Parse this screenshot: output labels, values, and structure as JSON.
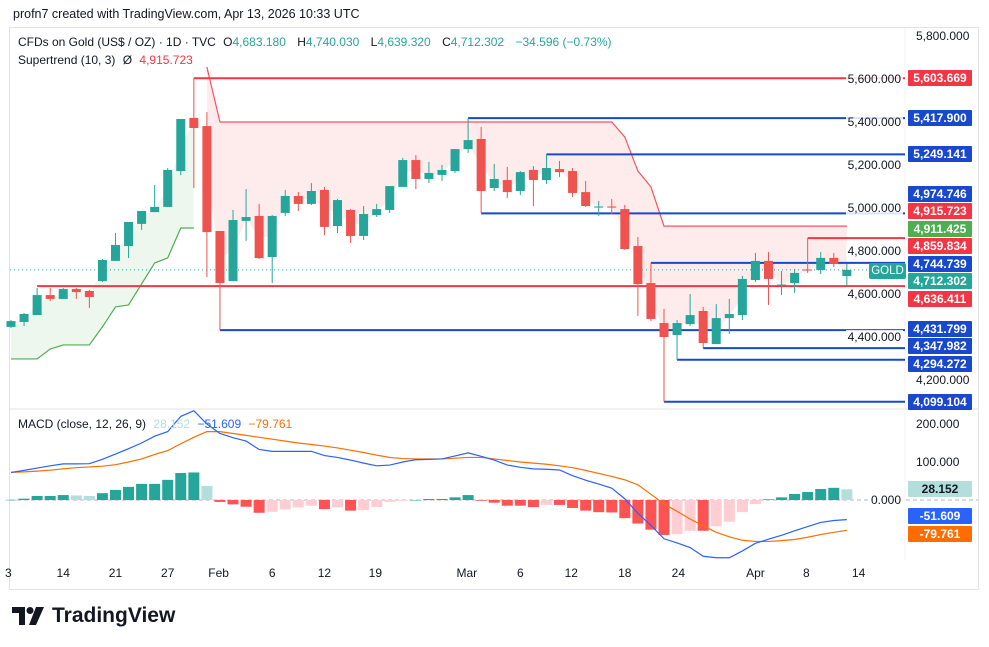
{
  "credit": "profn7 created with TradingView.com, Apr 13, 2026 10:33 UTC",
  "legend": {
    "symbol": "CFDs on Gold (US$ / OZ) · 1D · TVC",
    "open_label": "O",
    "open": "4,683.180",
    "high_label": "H",
    "high": "4,740.030",
    "low_label": "L",
    "low": "4,639.320",
    "close_label": "C",
    "close": "4,712.302",
    "change": "−34.596 (−0.73%)",
    "indicator": "Supertrend (10, 3)",
    "indicator_icon": "eye-off-icon",
    "indicator_value": "4,915.723"
  },
  "macd_legend": {
    "name": "MACD (close, 12, 26, 9)",
    "hist": "28.152",
    "macd": "−51.609",
    "signal": "−79.761"
  },
  "symbol_tag": "GOLD",
  "colors": {
    "up": "#26a69a",
    "down": "#ef5350",
    "level_blue": "#1848cc",
    "level_red": "#f23645",
    "supertrend_up": "#4caf50",
    "supertrend_down": "#f7525f",
    "macd": "#2962ff",
    "signal": "#ff6d00",
    "hist_up": "#26a69a",
    "hist_up_fading": "#b2dfdb",
    "hist_down": "#ff5252",
    "hist_down_fading": "#ffcdd2"
  },
  "price_axis": {
    "ticks": [
      "5,800.000",
      "5,600.000",
      "5,400.000",
      "5,200.000",
      "5,000.000",
      "4,800.000",
      "4,600.000",
      "4,400.000",
      "4,200.000"
    ],
    "range": [
      4099,
      5800
    ]
  },
  "price_labels": [
    {
      "text": "5,603.669",
      "value": 5603.669,
      "color": "#f23645"
    },
    {
      "text": "5,417.900",
      "value": 5417.9,
      "color": "#1848cc"
    },
    {
      "text": "5,249.141",
      "value": 5249.141,
      "color": "#1848cc"
    },
    {
      "text": "4,974.746",
      "value": 4974.746,
      "color": "#1848cc"
    },
    {
      "text": "4,915.723",
      "value": 4915.723,
      "color": "#f23645"
    },
    {
      "text": "4,911.425",
      "value": 4911.425,
      "color": "#4caf50"
    },
    {
      "text": "4,859.834",
      "value": 4859.834,
      "color": "#f23645"
    },
    {
      "text": "4,744.739",
      "value": 4744.739,
      "color": "#1848cc"
    },
    {
      "text": "4,712.302",
      "value": 4712.302,
      "color": "#26a69a"
    },
    {
      "text": "4,636.411",
      "value": 4636.411,
      "color": "#f23645"
    },
    {
      "text": "4,431.799",
      "value": 4431.799,
      "color": "#1848cc"
    },
    {
      "text": "4,347.982",
      "value": 4347.982,
      "color": "#1848cc"
    },
    {
      "text": "4,294.272",
      "value": 4294.272,
      "color": "#1848cc"
    },
    {
      "text": "4,099.104",
      "value": 4099.104,
      "color": "#1848cc"
    }
  ],
  "levels": [
    {
      "price": 5603.669,
      "from_bar": 14,
      "color": "#f23645"
    },
    {
      "price": 5417.9,
      "from_bar": 35,
      "color": "#1848cc"
    },
    {
      "price": 5249.141,
      "from_bar": 41,
      "color": "#1848cc"
    },
    {
      "price": 4974.746,
      "from_bar": 36,
      "color": "#1848cc"
    },
    {
      "price": 4859.834,
      "from_bar": 61,
      "color": "#f23645"
    },
    {
      "price": 4744.739,
      "from_bar": 49,
      "color": "#1848cc"
    },
    {
      "price": 4636.411,
      "from_bar": 2,
      "color": "#f23645"
    },
    {
      "price": 4431.799,
      "from_bar": 16,
      "color": "#1848cc"
    },
    {
      "price": 4347.982,
      "from_bar": 53,
      "color": "#1848cc"
    },
    {
      "price": 4294.272,
      "from_bar": 51,
      "color": "#1848cc"
    },
    {
      "price": 4099.104,
      "from_bar": 50,
      "color": "#1848cc"
    }
  ],
  "last_price": 4712.302,
  "macd_axis": {
    "ticks": [
      "200.000",
      "100.000",
      "0.000"
    ],
    "tick_values": [
      200,
      100,
      0
    ]
  },
  "macd_labels": [
    {
      "text": "28.152",
      "value": 28.152,
      "color": "#b2dfdb",
      "text_color": "#131722"
    },
    {
      "text": "-51.609",
      "value": -51.609,
      "color": "#2962ff",
      "text_color": "#ffffff"
    },
    {
      "text": "-79.761",
      "value": -79.761,
      "color": "#ff6d00",
      "text_color": "#ffffff"
    }
  ],
  "x_ticks": [
    {
      "label": "3",
      "bar": -0.2
    },
    {
      "label": "14",
      "bar": 4.0
    },
    {
      "label": "21",
      "bar": 8.0
    },
    {
      "label": "27",
      "bar": 12.0
    },
    {
      "label": "Feb",
      "bar": 15.9
    },
    {
      "label": "6",
      "bar": 20.0
    },
    {
      "label": "12",
      "bar": 24.0
    },
    {
      "label": "19",
      "bar": 27.9
    },
    {
      "label": "Mar",
      "bar": 34.9
    },
    {
      "label": "6",
      "bar": 39.0
    },
    {
      "label": "12",
      "bar": 42.9
    },
    {
      "label": "18",
      "bar": 47.0
    },
    {
      "label": "24",
      "bar": 51.1
    },
    {
      "label": "Apr",
      "bar": 57.0
    },
    {
      "label": "8",
      "bar": 60.9
    },
    {
      "label": "14",
      "bar": 64.9
    }
  ],
  "chart_data": {
    "type": "candlestick",
    "candles": [
      [
        4447,
        4479,
        4442,
        4474
      ],
      [
        4470,
        4512,
        4451,
        4507
      ],
      [
        4502,
        4628,
        4502,
        4595
      ],
      [
        4595,
        4628,
        4567,
        4577
      ],
      [
        4577,
        4628,
        4577,
        4623
      ],
      [
        4623,
        4628,
        4577,
        4609
      ],
      [
        4614,
        4619,
        4535,
        4586
      ],
      [
        4660,
        4763,
        4656,
        4758
      ],
      [
        4754,
        4884,
        4754,
        4828
      ],
      [
        4823,
        4935,
        4767,
        4935
      ],
      [
        4926,
        4986,
        4898,
        4986
      ],
      [
        4981,
        5107,
        4981,
        5005
      ],
      [
        5005,
        5186,
        5005,
        5177
      ],
      [
        5172,
        5414,
        5153,
        5414
      ],
      [
        5419,
        5603.669,
        5093,
        5372
      ],
      [
        5381,
        5446,
        4679,
        4888
      ],
      [
        4893,
        4893,
        4431.799,
        4651
      ],
      [
        4660,
        4991,
        4660,
        4944
      ],
      [
        4940,
        5088,
        4847,
        4958
      ],
      [
        4963,
        5019,
        4763,
        4767
      ],
      [
        4772,
        4967,
        4651,
        4963
      ],
      [
        4977,
        5084,
        4963,
        5056
      ],
      [
        5056,
        5074,
        4986,
        5019
      ],
      [
        5019,
        5116,
        5014,
        5079
      ],
      [
        5084,
        5098,
        4874,
        4912
      ],
      [
        4916,
        5042,
        4884,
        5037
      ],
      [
        4991,
        4995,
        4837,
        4870
      ],
      [
        4870,
        5009,
        4851,
        4972
      ],
      [
        4967,
        5019,
        4958,
        4995
      ],
      [
        4991,
        5102,
        4977,
        5102
      ],
      [
        5098,
        5233,
        5098,
        5223
      ],
      [
        5223,
        5246,
        5088,
        5135
      ],
      [
        5135,
        5214,
        5116,
        5163
      ],
      [
        5154,
        5200,
        5126,
        5177
      ],
      [
        5172,
        5274,
        5163,
        5274
      ],
      [
        5274,
        5417.9,
        5256,
        5316
      ],
      [
        5321,
        5377,
        4974.746,
        5079
      ],
      [
        5093,
        5205,
        5079,
        5135
      ],
      [
        5130,
        5191,
        5046,
        5074
      ],
      [
        5079,
        5172,
        5060,
        5167
      ],
      [
        5177,
        5195,
        5009,
        5130
      ],
      [
        5130,
        5249.141,
        5112,
        5186
      ],
      [
        5181,
        5219,
        5144,
        5167
      ],
      [
        5172,
        5186,
        5051,
        5070
      ],
      [
        5074,
        5126,
        5005,
        5009
      ],
      [
        5002,
        5033,
        4963,
        5007
      ],
      [
        5007,
        5042,
        4972,
        5002
      ],
      [
        4995,
        5014,
        4805,
        4809
      ],
      [
        4823,
        4865,
        4498,
        4646
      ],
      [
        4651,
        4744.739,
        4474,
        4484
      ],
      [
        4465,
        4530,
        4099.104,
        4400
      ],
      [
        4409,
        4479,
        4294.272,
        4465
      ],
      [
        4460,
        4600,
        4451,
        4502
      ],
      [
        4521,
        4540,
        4347.982,
        4372
      ],
      [
        4367,
        4553,
        4367,
        4488
      ],
      [
        4488,
        4577,
        4414,
        4507
      ],
      [
        4502,
        4684,
        4479,
        4670
      ],
      [
        4665,
        4791,
        4656,
        4754
      ],
      [
        4754,
        4795,
        4549,
        4670
      ],
      [
        4640,
        4707,
        4595,
        4644
      ],
      [
        4651,
        4716,
        4605,
        4698
      ],
      [
        4714,
        4859.834,
        4698,
        4709
      ],
      [
        4712,
        4795,
        4693,
        4768
      ],
      [
        4768,
        4791,
        4726,
        4740
      ],
      [
        4683.18,
        4740.03,
        4639.32,
        4712.302
      ]
    ],
    "candle_fields": [
      "open",
      "high",
      "low",
      "close"
    ],
    "supertrend": [
      4298,
      4298,
      4298,
      4344,
      4363,
      4363,
      4363,
      4447,
      4540,
      4549,
      4647,
      4744,
      4768,
      4907,
      4907,
      5656,
      5400,
      5400,
      5400,
      5400,
      5400,
      5400,
      5400,
      5400,
      5400,
      5400,
      5400,
      5400,
      5400,
      5400,
      5400,
      5400,
      5400,
      5400,
      5400,
      5400,
      5400,
      5400,
      5400,
      5400,
      5400,
      5400,
      5400,
      5400,
      5400,
      5400,
      5400,
      5330,
      5172,
      5098,
      4915.723,
      4915.723,
      4915.723,
      4915.723,
      4915.723,
      4915.723,
      4915.723,
      4915.723,
      4915.723,
      4915.723,
      4915.723,
      4915.723,
      4915.723,
      4915.723,
      4915.723
    ],
    "supertrend_direction": [
      "up",
      15,
      "down",
      50
    ],
    "macd": [
      72.6,
      78,
      84,
      90,
      95,
      95,
      95.6,
      107,
      121,
      135,
      150,
      168,
      180,
      220,
      235,
      200,
      175,
      164,
      155,
      133,
      128,
      128,
      128,
      128,
      117,
      112,
      105,
      97,
      90,
      92,
      100,
      106,
      107,
      108,
      116,
      124,
      115,
      105,
      92,
      86,
      82,
      81,
      79,
      64,
      52,
      42,
      31,
      3,
      -35,
      -67,
      -102,
      -113,
      -125,
      -148,
      -152,
      -152,
      -134,
      -114,
      -103,
      -93,
      -81,
      -70,
      -59,
      -54,
      -51.609
    ],
    "signal": [
      72.6,
      74,
      76,
      78.5,
      82,
      85,
      87,
      89,
      93,
      100,
      108,
      120,
      130,
      148,
      165,
      180,
      180,
      175,
      170,
      165,
      160,
      155,
      150,
      146,
      142,
      137,
      131,
      125,
      118,
      112,
      109,
      108,
      108,
      108,
      110,
      112,
      112,
      108,
      104,
      100,
      97,
      94,
      90,
      85,
      78,
      70,
      62,
      53,
      40,
      15,
      -10,
      -30,
      -50,
      -68,
      -85,
      -97,
      -106,
      -109,
      -109,
      -107,
      -104,
      -98,
      -91,
      -85,
      -79.761
    ],
    "histogram": [
      0.5,
      3.5,
      10.6,
      10.6,
      13,
      12,
      10.6,
      18,
      26.5,
      34.5,
      42.5,
      42.5,
      53,
      71,
      72.5,
      37,
      -5,
      -11.5,
      -17.7,
      -33.6,
      -31,
      -24.8,
      -19.5,
      -15,
      -24,
      -19.5,
      -28,
      -26.5,
      -18.6,
      -5,
      -2,
      0,
      2.7,
      2.7,
      7,
      13,
      -2,
      -7,
      -15,
      -15,
      -18.6,
      -13,
      -13,
      -21,
      -28,
      -32,
      -32.7,
      -47.8,
      -62,
      -78,
      -92,
      -90,
      -81,
      -81,
      -69,
      -57,
      -32,
      -10.6,
      1.8,
      7,
      16,
      21,
      29,
      32,
      28.152
    ],
    "macd_range": [
      -160,
      240
    ]
  },
  "logo_text": "TradingView"
}
